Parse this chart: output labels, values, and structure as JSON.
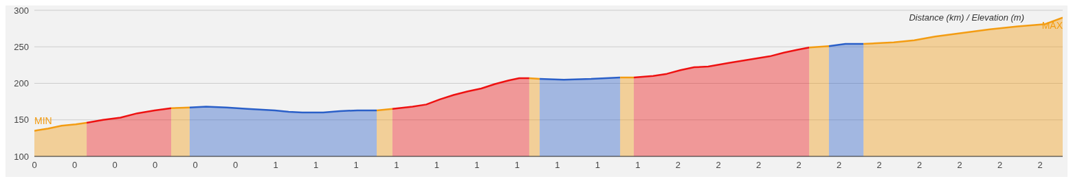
{
  "chart_data": {
    "type": "area",
    "annotations": [
      "Distance (km) / Elevation (m)",
      {
        "text": "MIN",
        "x": 0,
        "y": 135
      },
      {
        "text": "MAX",
        "x": 2.556,
        "y": 290
      }
    ],
    "series": [
      {
        "color": "#f39c12",
        "x": [
          0,
          0.009,
          0.034,
          0.068,
          0.103,
          0.13
        ],
        "values": [
          135,
          136,
          138,
          142,
          144,
          146
        ]
      },
      {
        "color": "#ee1111",
        "x": [
          0.13,
          0.171,
          0.214,
          0.256,
          0.299,
          0.34
        ],
        "values": [
          146,
          150,
          153,
          159,
          163,
          166
        ]
      },
      {
        "color": "#f39c12",
        "x": [
          0.34,
          0.386
        ],
        "values": [
          166,
          167
        ]
      },
      {
        "color": "#2a5fc8",
        "x": [
          0.386,
          0.427,
          0.478,
          0.53,
          0.598,
          0.632,
          0.666,
          0.718,
          0.76,
          0.803,
          0.851
        ],
        "values": [
          167,
          168,
          167,
          165,
          163,
          161,
          160,
          160,
          162,
          163,
          163
        ]
      },
      {
        "color": "#f39c12",
        "x": [
          0.851,
          0.89
        ],
        "values": [
          163,
          165
        ]
      },
      {
        "color": "#ee1111",
        "x": [
          0.89,
          0.94,
          0.974,
          1.008,
          1.042,
          1.077,
          1.111,
          1.145,
          1.179,
          1.205,
          1.23
        ],
        "values": [
          165,
          168,
          171,
          178,
          184,
          189,
          193,
          199,
          204,
          207,
          207
        ]
      },
      {
        "color": "#f39c12",
        "x": [
          1.23,
          1.256
        ],
        "values": [
          207,
          206
        ]
      },
      {
        "color": "#2a5fc8",
        "x": [
          1.256,
          1.316,
          1.384,
          1.456
        ],
        "values": [
          206,
          205,
          206,
          208
        ]
      },
      {
        "color": "#f39c12",
        "x": [
          1.456,
          1.49
        ],
        "values": [
          208,
          208
        ]
      },
      {
        "color": "#ee1111",
        "x": [
          1.49,
          1.538,
          1.572,
          1.606,
          1.64,
          1.675,
          1.726,
          1.76,
          1.794,
          1.828,
          1.863,
          1.897,
          1.926
        ],
        "values": [
          208,
          210,
          213,
          218,
          222,
          223,
          228,
          231,
          234,
          237,
          242,
          246,
          249
        ]
      },
      {
        "color": "#f39c12",
        "x": [
          1.926,
          1.975
        ],
        "values": [
          249,
          251
        ]
      },
      {
        "color": "#2a5fc8",
        "x": [
          1.975,
          2.016,
          2.061
        ],
        "values": [
          251,
          254,
          254
        ]
      },
      {
        "color": "#f39c12",
        "x": [
          2.061,
          2.136,
          2.187,
          2.239,
          2.307,
          2.375,
          2.444,
          2.512,
          2.556
        ],
        "values": [
          254,
          256,
          259,
          264,
          269,
          274,
          278,
          281,
          290
        ]
      }
    ],
    "xlim": [
      0,
      2.556
    ],
    "xticks": [
      {
        "value": 0,
        "label": "0"
      },
      {
        "value": 0.1,
        "label": "0"
      },
      {
        "value": 0.2,
        "label": "0"
      },
      {
        "value": 0.3,
        "label": "0"
      },
      {
        "value": 0.4,
        "label": "0"
      },
      {
        "value": 0.5,
        "label": "0"
      },
      {
        "value": 0.6,
        "label": "1"
      },
      {
        "value": 0.7,
        "label": "1"
      },
      {
        "value": 0.8,
        "label": "1"
      },
      {
        "value": 0.9,
        "label": "1"
      },
      {
        "value": 1.0,
        "label": "1"
      },
      {
        "value": 1.1,
        "label": "1"
      },
      {
        "value": 1.2,
        "label": "1"
      },
      {
        "value": 1.3,
        "label": "1"
      },
      {
        "value": 1.4,
        "label": "1"
      },
      {
        "value": 1.5,
        "label": "1"
      },
      {
        "value": 1.6,
        "label": "2"
      },
      {
        "value": 1.7,
        "label": "2"
      },
      {
        "value": 1.8,
        "label": "2"
      },
      {
        "value": 1.9,
        "label": "2"
      },
      {
        "value": 2.0,
        "label": "2"
      },
      {
        "value": 2.1,
        "label": "2"
      },
      {
        "value": 2.2,
        "label": "2"
      },
      {
        "value": 2.3,
        "label": "2"
      },
      {
        "value": 2.4,
        "label": "2"
      },
      {
        "value": 2.5,
        "label": "2"
      }
    ],
    "ylim": [
      100,
      300
    ],
    "yticks": [
      100,
      150,
      200,
      250,
      300
    ],
    "grid": "y",
    "marker": "none",
    "line_style": "solid"
  }
}
